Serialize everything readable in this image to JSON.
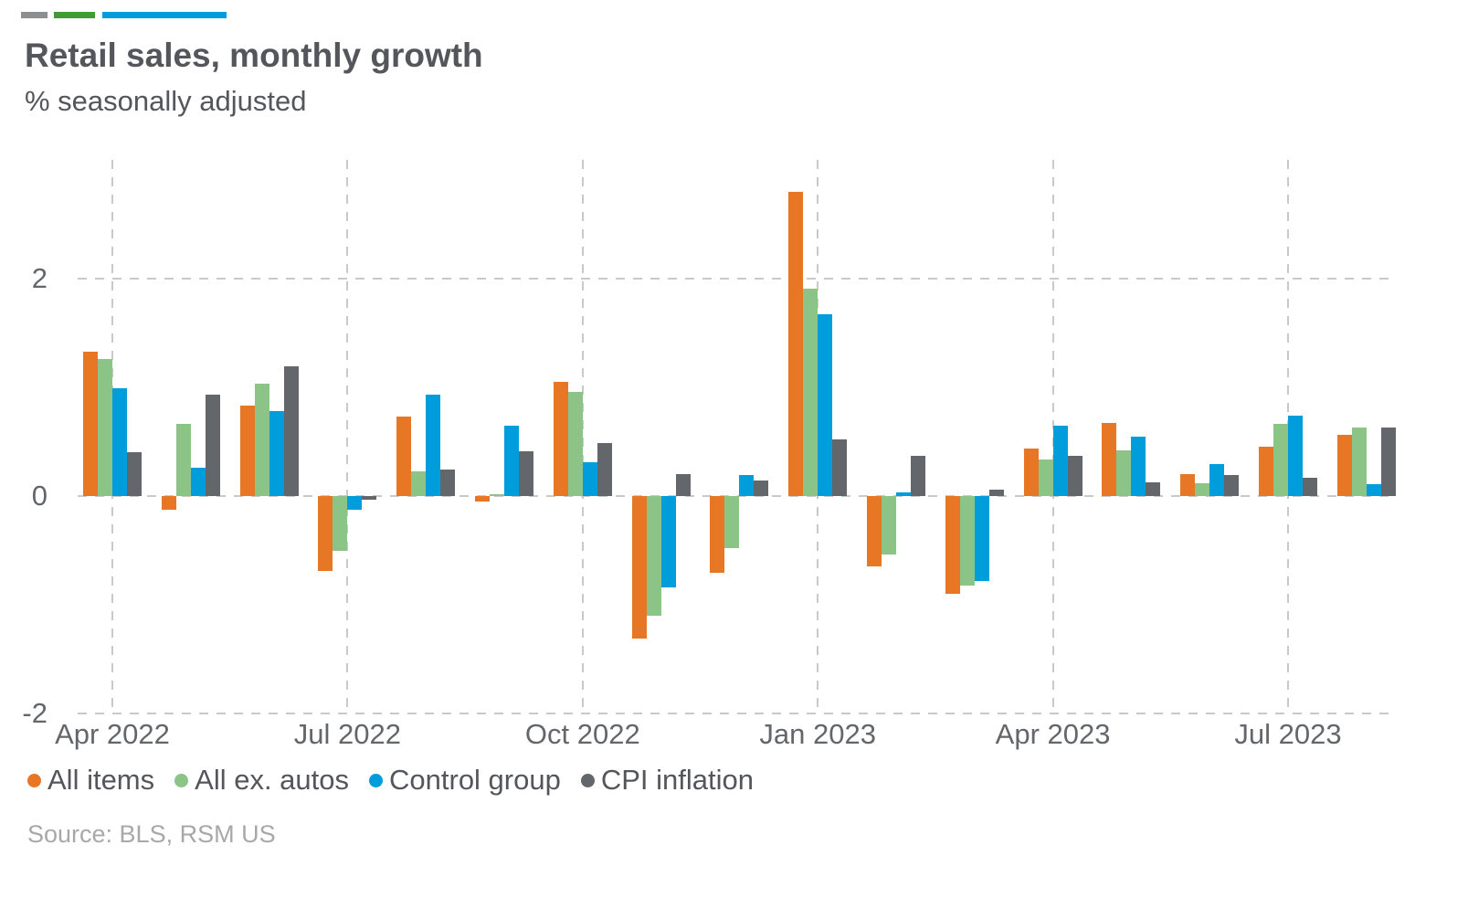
{
  "header": {
    "title": "Retail sales, monthly growth",
    "subtitle": "% seasonally adjusted",
    "accent_colors": [
      "#8C8E90",
      "#3F9C35",
      "#009CDE"
    ]
  },
  "chart_data": {
    "type": "bar",
    "title": "Retail sales, monthly growth",
    "subtitle": "% seasonally adjusted",
    "xlabel": "",
    "ylabel": "% seasonally adjusted",
    "ylim": [
      -2,
      3.1
    ],
    "grid": "dashed",
    "legend_position": "bottom",
    "y_ticks": [
      2,
      0,
      -2
    ],
    "x_tick_labels": [
      "Apr 2022",
      "Jul 2022",
      "Oct 2022",
      "Jan 2023",
      "Apr 2023",
      "Jul 2023"
    ],
    "categories": [
      "Apr 2022",
      "May 2022",
      "Jun 2022",
      "Jul 2022",
      "Aug 2022",
      "Sep 2022",
      "Oct 2022",
      "Nov 2022",
      "Dec 2022",
      "Jan 2023",
      "Feb 2023",
      "Mar 2023",
      "Apr 2023",
      "May 2023",
      "Jun 2023",
      "Jul 2023",
      "Aug 2023"
    ],
    "series": [
      {
        "name": "All items",
        "color": "#E87725",
        "values": [
          1.33,
          -0.13,
          0.83,
          -0.69,
          0.73,
          -0.05,
          1.05,
          -1.31,
          -0.71,
          2.8,
          -0.65,
          -0.9,
          0.44,
          0.67,
          0.2,
          0.45,
          0.56
        ]
      },
      {
        "name": "All ex. autos",
        "color": "#8CC487",
        "values": [
          1.26,
          0.66,
          1.03,
          -0.5,
          0.23,
          0.02,
          0.96,
          -1.1,
          -0.48,
          1.91,
          -0.54,
          -0.82,
          0.34,
          0.42,
          0.12,
          0.66,
          0.63
        ]
      },
      {
        "name": "Control group",
        "color": "#009DDC",
        "values": [
          0.99,
          0.26,
          0.78,
          -0.13,
          0.93,
          0.65,
          0.31,
          -0.84,
          0.19,
          1.67,
          0.03,
          -0.78,
          0.65,
          0.55,
          0.29,
          0.74,
          0.11
        ]
      },
      {
        "name": "CPI inflation",
        "color": "#63666A",
        "values": [
          0.4,
          0.93,
          1.19,
          -0.03,
          0.24,
          0.41,
          0.49,
          0.2,
          0.14,
          0.52,
          0.37,
          0.06,
          0.37,
          0.13,
          0.19,
          0.17,
          0.63
        ]
      }
    ]
  },
  "legend": {
    "items": [
      {
        "label": "All items",
        "color": "#E87725"
      },
      {
        "label": "All ex. autos",
        "color": "#8CC487"
      },
      {
        "label": "Control group",
        "color": "#009DDC"
      },
      {
        "label": "CPI inflation",
        "color": "#63666A"
      }
    ]
  },
  "source": {
    "text": "Source: BLS, RSM US"
  }
}
